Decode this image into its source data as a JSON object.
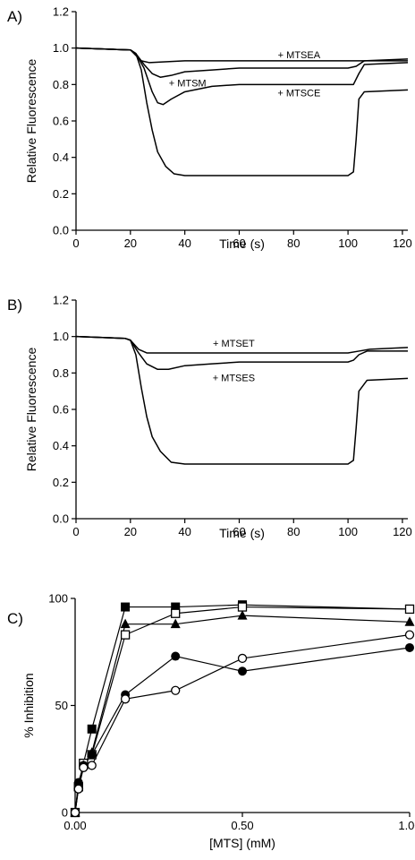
{
  "chart_data": [
    {
      "panel_label": "A)",
      "type": "line",
      "xlabel": "Time (s)",
      "ylabel": "Relative Fluorescence",
      "xlim": [
        0,
        122
      ],
      "ylim": [
        0,
        1.2
      ],
      "xticks": [
        0,
        20,
        40,
        60,
        80,
        100,
        120
      ],
      "yticks": [
        "0.0",
        "0.2",
        "0.4",
        "0.6",
        "0.8",
        "1.0",
        "1.2"
      ],
      "grid": false,
      "series": [
        {
          "name": "",
          "points": [
            [
              0,
              1.0
            ],
            [
              20,
              0.99
            ],
            [
              22,
              0.97
            ],
            [
              24,
              0.88
            ],
            [
              26,
              0.7
            ],
            [
              28,
              0.55
            ],
            [
              30,
              0.43
            ],
            [
              33,
              0.35
            ],
            [
              36,
              0.31
            ],
            [
              40,
              0.3
            ],
            [
              60,
              0.3
            ],
            [
              80,
              0.3
            ],
            [
              100,
              0.3
            ],
            [
              102,
              0.32
            ],
            [
              103,
              0.5
            ],
            [
              104,
              0.72
            ],
            [
              106,
              0.76
            ],
            [
              122,
              0.77
            ]
          ]
        },
        {
          "name": "",
          "points": [
            [
              0,
              1.0
            ],
            [
              20,
              0.99
            ],
            [
              22,
              0.97
            ],
            [
              25,
              0.89
            ],
            [
              28,
              0.76
            ],
            [
              30,
              0.7
            ],
            [
              32,
              0.69
            ],
            [
              35,
              0.72
            ],
            [
              40,
              0.76
            ],
            [
              50,
              0.79
            ],
            [
              60,
              0.8
            ],
            [
              80,
              0.8
            ],
            [
              100,
              0.8
            ],
            [
              102,
              0.8
            ],
            [
              104,
              0.86
            ],
            [
              106,
              0.91
            ],
            [
              122,
              0.92
            ]
          ]
        },
        {
          "name": "",
          "points": [
            [
              0,
              1.0
            ],
            [
              20,
              0.99
            ],
            [
              22,
              0.97
            ],
            [
              25,
              0.91
            ],
            [
              28,
              0.86
            ],
            [
              31,
              0.84
            ],
            [
              35,
              0.85
            ],
            [
              40,
              0.87
            ],
            [
              50,
              0.88
            ],
            [
              60,
              0.89
            ],
            [
              80,
              0.89
            ],
            [
              100,
              0.89
            ],
            [
              103,
              0.9
            ],
            [
              106,
              0.93
            ],
            [
              122,
              0.94
            ]
          ]
        },
        {
          "name": "",
          "points": [
            [
              0,
              1.0
            ],
            [
              20,
              0.99
            ],
            [
              22,
              0.96
            ],
            [
              24,
              0.93
            ],
            [
              27,
              0.92
            ],
            [
              40,
              0.93
            ],
            [
              60,
              0.93
            ],
            [
              80,
              0.93
            ],
            [
              100,
              0.93
            ],
            [
              105,
              0.93
            ],
            [
              122,
              0.93
            ]
          ]
        }
      ],
      "annotations": [
        {
          "text": "+ MTSEA",
          "x": 82,
          "y": 0.965
        },
        {
          "text": "+ MTSM",
          "x": 41,
          "y": 0.81
        },
        {
          "text": "+ MTSCE",
          "x": 82,
          "y": 0.755
        }
      ]
    },
    {
      "panel_label": "B)",
      "type": "line",
      "xlabel": "Time (s)",
      "ylabel": "Relative Fluorescence",
      "xlim": [
        0,
        122
      ],
      "ylim": [
        0,
        1.2
      ],
      "xticks": [
        0,
        20,
        40,
        60,
        80,
        100,
        120
      ],
      "yticks": [
        "0.0",
        "0.2",
        "0.4",
        "0.6",
        "0.8",
        "1.0",
        "1.2"
      ],
      "grid": false,
      "series": [
        {
          "name": "",
          "points": [
            [
              0,
              1.0
            ],
            [
              18,
              0.99
            ],
            [
              20,
              0.98
            ],
            [
              22,
              0.9
            ],
            [
              24,
              0.72
            ],
            [
              26,
              0.56
            ],
            [
              28,
              0.45
            ],
            [
              31,
              0.37
            ],
            [
              35,
              0.31
            ],
            [
              40,
              0.3
            ],
            [
              60,
              0.3
            ],
            [
              80,
              0.3
            ],
            [
              100,
              0.3
            ],
            [
              102,
              0.32
            ],
            [
              103,
              0.5
            ],
            [
              104,
              0.7
            ],
            [
              107,
              0.76
            ],
            [
              122,
              0.77
            ]
          ]
        },
        {
          "name": "",
          "points": [
            [
              0,
              1.0
            ],
            [
              18,
              0.99
            ],
            [
              20,
              0.98
            ],
            [
              23,
              0.91
            ],
            [
              26,
              0.85
            ],
            [
              30,
              0.82
            ],
            [
              34,
              0.82
            ],
            [
              40,
              0.84
            ],
            [
              50,
              0.85
            ],
            [
              60,
              0.86
            ],
            [
              80,
              0.86
            ],
            [
              100,
              0.86
            ],
            [
              102,
              0.87
            ],
            [
              104,
              0.9
            ],
            [
              107,
              0.92
            ],
            [
              122,
              0.92
            ]
          ]
        },
        {
          "name": "",
          "points": [
            [
              0,
              1.0
            ],
            [
              18,
              0.99
            ],
            [
              20,
              0.98
            ],
            [
              23,
              0.93
            ],
            [
              26,
              0.91
            ],
            [
              40,
              0.91
            ],
            [
              60,
              0.91
            ],
            [
              80,
              0.91
            ],
            [
              100,
              0.91
            ],
            [
              104,
              0.92
            ],
            [
              108,
              0.93
            ],
            [
              122,
              0.94
            ]
          ]
        }
      ],
      "annotations": [
        {
          "text": "+ MTSET",
          "x": 58,
          "y": 0.965
        },
        {
          "text": "+ MTSES",
          "x": 58,
          "y": 0.775
        }
      ]
    },
    {
      "panel_label": "C)",
      "type": "scatter",
      "xlabel": "[MTS] (mM)",
      "ylabel": "% Inhibition",
      "xlim": [
        0,
        1.0
      ],
      "ylim": [
        0,
        100
      ],
      "xticks": [
        "0.00",
        "0.50",
        "1.00"
      ],
      "xtick_values": [
        0,
        0.5,
        1.0
      ],
      "yticks": [
        0,
        50,
        100
      ],
      "grid": false,
      "series": [
        {
          "name": "",
          "marker": "square-filled",
          "x": [
            0,
            0.01,
            0.025,
            0.05,
            0.15,
            0.3,
            0.5,
            1.0
          ],
          "y": [
            0,
            12,
            23,
            39,
            96,
            96,
            97,
            95
          ]
        },
        {
          "name": "",
          "marker": "square-open",
          "x": [
            0,
            0.01,
            0.025,
            0.05,
            0.15,
            0.3,
            0.5,
            1.0
          ],
          "y": [
            0,
            12,
            23,
            27,
            83,
            93,
            96,
            95
          ]
        },
        {
          "name": "",
          "marker": "triangle-filled",
          "x": [
            0,
            0.01,
            0.025,
            0.05,
            0.15,
            0.3,
            0.5,
            1.0
          ],
          "y": [
            0,
            13,
            22,
            28,
            88,
            88,
            92,
            89
          ]
        },
        {
          "name": "",
          "marker": "circle-filled",
          "x": [
            0,
            0.01,
            0.025,
            0.05,
            0.15,
            0.3,
            0.5,
            1.0
          ],
          "y": [
            0,
            14,
            22,
            27,
            55,
            73,
            66,
            77
          ]
        },
        {
          "name": "",
          "marker": "circle-open",
          "x": [
            0,
            0.01,
            0.025,
            0.05,
            0.15,
            0.3,
            0.5,
            1.0
          ],
          "y": [
            0,
            11,
            21,
            22,
            53,
            57,
            72,
            83
          ]
        }
      ]
    }
  ]
}
